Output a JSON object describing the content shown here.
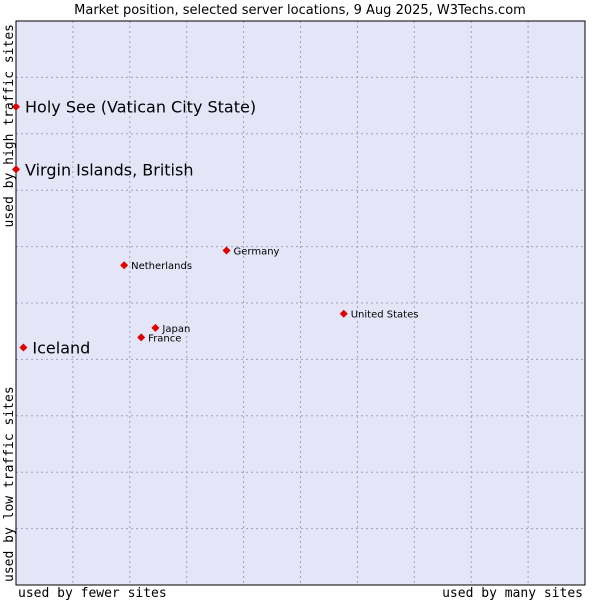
{
  "chart_data": {
    "type": "scatter",
    "title": "Market position, selected server locations, 9 Aug 2025, W3Techs.com",
    "xlabel_left": "used by fewer sites",
    "xlabel_right": "used by many sites",
    "ylabel_bottom": "used by low traffic sites",
    "ylabel_top": "used by high traffic sites",
    "xlim": [
      0,
      100
    ],
    "ylim": [
      0,
      100
    ],
    "grid": true,
    "colors": {
      "plot_bg": "#e4e6f8",
      "grid": "#a0a0c0",
      "marker": "#e00000",
      "border": "#000000"
    },
    "points": [
      {
        "name": "Holy See (Vatican City State)",
        "x": 0,
        "y": 84.8,
        "size": "large"
      },
      {
        "name": "Virgin Islands, British",
        "x": 0,
        "y": 73.7,
        "size": "large"
      },
      {
        "name": "Germany",
        "x": 37.0,
        "y": 59.3,
        "size": "small"
      },
      {
        "name": "Netherlands",
        "x": 19.0,
        "y": 56.7,
        "size": "small"
      },
      {
        "name": "United States",
        "x": 57.6,
        "y": 48.1,
        "size": "small"
      },
      {
        "name": "Japan",
        "x": 24.5,
        "y": 45.6,
        "size": "small"
      },
      {
        "name": "France",
        "x": 22.0,
        "y": 43.9,
        "size": "small"
      },
      {
        "name": "Iceland",
        "x": 1.3,
        "y": 42.1,
        "size": "large"
      }
    ]
  }
}
